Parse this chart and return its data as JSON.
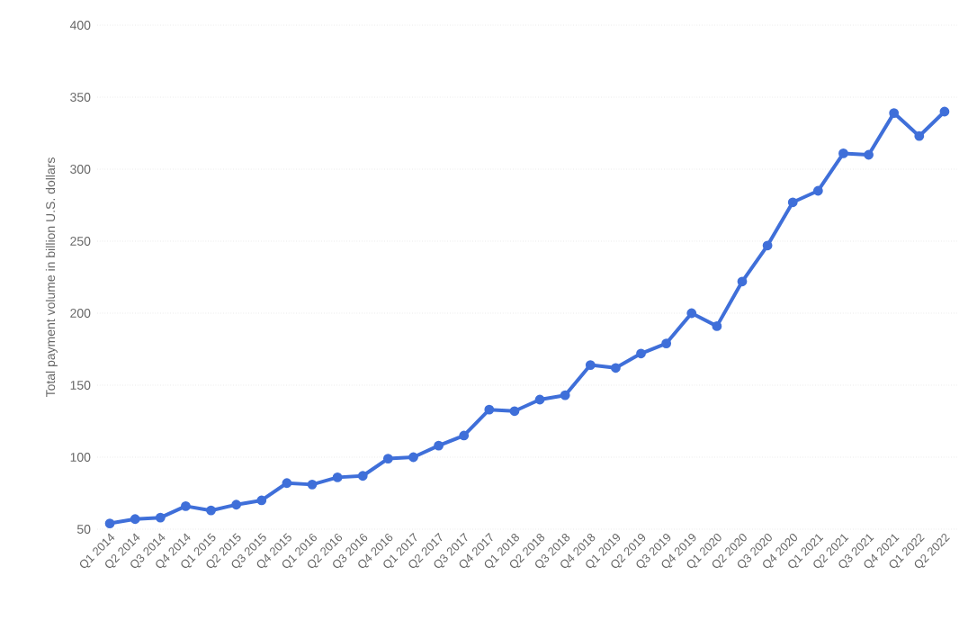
{
  "chart_data": {
    "type": "line",
    "ylabel": "Total payment volume in billion U.S. dollars",
    "categories": [
      "Q1 2014",
      "Q2 2014",
      "Q3 2014",
      "Q4 2014",
      "Q1 2015",
      "Q2 2015",
      "Q3 2015",
      "Q4 2015",
      "Q1 2016",
      "Q2 2016",
      "Q3 2016",
      "Q4 2016",
      "Q1 2017",
      "Q2 2017",
      "Q3 2017",
      "Q4 2017",
      "Q1 2018",
      "Q2 2018",
      "Q3 2018",
      "Q4 2018",
      "Q1 2019",
      "Q2 2019",
      "Q3 2019",
      "Q4 2019",
      "Q1 2020",
      "Q2 2020",
      "Q3 2020",
      "Q4 2020",
      "Q1 2021",
      "Q2 2021",
      "Q3 2021",
      "Q4 2021",
      "Q1 2022",
      "Q2 2022"
    ],
    "values": [
      54,
      57,
      58,
      66,
      63,
      67,
      70,
      82,
      81,
      86,
      87,
      99,
      100,
      108,
      115,
      133,
      132,
      140,
      143,
      164,
      162,
      172,
      179,
      200,
      191,
      222,
      247,
      277,
      285,
      311,
      310,
      339,
      323,
      340
    ],
    "color": "#3f6fd9",
    "ylim": [
      50,
      400
    ],
    "yticks": [
      50,
      100,
      150,
      200,
      250,
      300,
      350,
      400
    ],
    "grid": "y",
    "marker": "circle",
    "line_style": "solid"
  }
}
